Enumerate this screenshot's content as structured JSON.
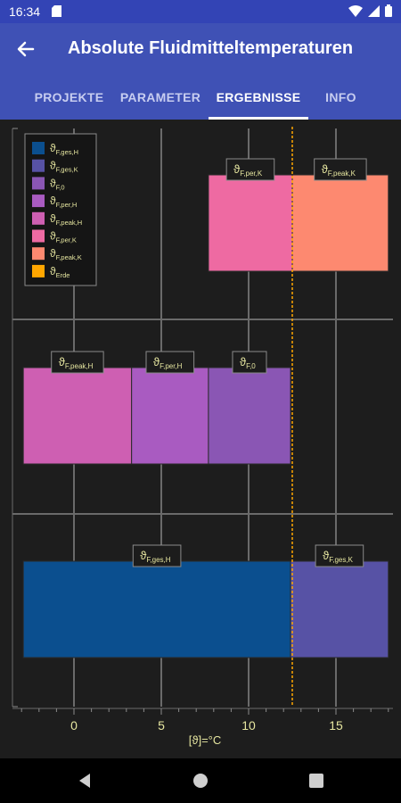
{
  "status_bar": {
    "time": "16:34"
  },
  "app_bar": {
    "title": "Absolute Fluidmitteltemperaturen",
    "back_icon": "arrow-back-icon"
  },
  "tabs": [
    {
      "label": "PROJEKTE"
    },
    {
      "label": "PARAMETER"
    },
    {
      "label": "ERGEBNISSE",
      "active": true
    },
    {
      "label": "INFO"
    }
  ],
  "colors": {
    "primary": "#3f51b5",
    "status_bar": "#3344b5",
    "background": "#1d1d1d",
    "label_text": "#e6e6a0"
  },
  "chart_data": {
    "type": "bar",
    "orientation": "horizontal-stacked",
    "xlabel": "[ϑ]=°C",
    "xticks": [
      "0",
      "5",
      "10",
      "15"
    ],
    "xlim": [
      -3.5,
      18
    ],
    "grid": true,
    "legend": {
      "placement": "top-left",
      "entries": [
        {
          "sym": "ϑ",
          "sub": "F,ges,H",
          "color": "#0b4f8f"
        },
        {
          "sym": "ϑ",
          "sub": "F,ges,K",
          "color": "#5752a5"
        },
        {
          "sym": "ϑ",
          "sub": "F,0",
          "color": "#8a56b4"
        },
        {
          "sym": "ϑ",
          "sub": "F,per,H",
          "color": "#a95bc1"
        },
        {
          "sym": "ϑ",
          "sub": "F,peak,H",
          "color": "#ce5fb2"
        },
        {
          "sym": "ϑ",
          "sub": "F,per,K",
          "color": "#ee6aa2"
        },
        {
          "sym": "ϑ",
          "sub": "F,peak,K",
          "color": "#fd8970"
        },
        {
          "sym": "ϑ",
          "sub": "Erde",
          "color": "#ffa600"
        }
      ]
    },
    "reference_line": {
      "sub": "Erde",
      "value": 12.5,
      "color": "#ffa600"
    },
    "rows": [
      {
        "segments": [
          {
            "sub": "F,per,K",
            "start": 7.7,
            "end": 12.5,
            "color": "#ee6aa2"
          },
          {
            "sub": "F,peak,K",
            "start": 12.5,
            "end": 18.0,
            "color": "#fd8970"
          }
        ]
      },
      {
        "segments": [
          {
            "sub": "F,peak,H",
            "start": -2.9,
            "end": 3.3,
            "color": "#ce5fb2"
          },
          {
            "sub": "F,per,H",
            "start": 3.3,
            "end": 7.7,
            "color": "#a95bc1"
          },
          {
            "sub": "F,0",
            "start": 7.7,
            "end": 12.4,
            "color": "#8a56b4"
          }
        ]
      },
      {
        "segments": [
          {
            "sub": "F,ges,H",
            "start": -2.9,
            "end": 12.4,
            "color": "#0b4f8f"
          },
          {
            "sub": "F,ges,K",
            "start": 12.4,
            "end": 18.0,
            "color": "#5752a5"
          }
        ]
      }
    ]
  }
}
